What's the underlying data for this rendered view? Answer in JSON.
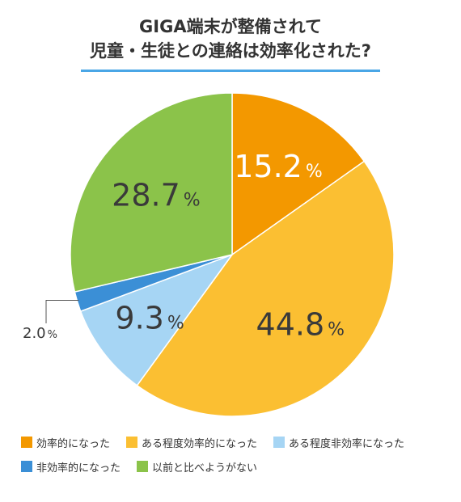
{
  "title_line1": "GIGA端末が整備されて",
  "title_line2": "児童・生徒との連絡は効率化された?",
  "chart_data": {
    "type": "pie",
    "title": "GIGA端末が整備されて 児童・生徒との連絡は効率化された?",
    "unit": "%",
    "slices": [
      {
        "label": "効率的になった",
        "value": 15.2,
        "display": "15.2",
        "color": "#f39800"
      },
      {
        "label": "ある程度効率的になった",
        "value": 44.8,
        "display": "44.8",
        "color": "#fbbf32"
      },
      {
        "label": "ある程度非効率になった",
        "value": 9.3,
        "display": "9.3",
        "color": "#a6d5f4"
      },
      {
        "label": "非効率的になった",
        "value": 2.0,
        "display": "2.0",
        "color": "#3b8fd6"
      },
      {
        "label": "以前と比べようがない",
        "value": 28.7,
        "display": "28.7",
        "color": "#8bc34a"
      }
    ],
    "start": "12 o'clock",
    "direction": "clockwise",
    "legend_position": "bottom"
  }
}
